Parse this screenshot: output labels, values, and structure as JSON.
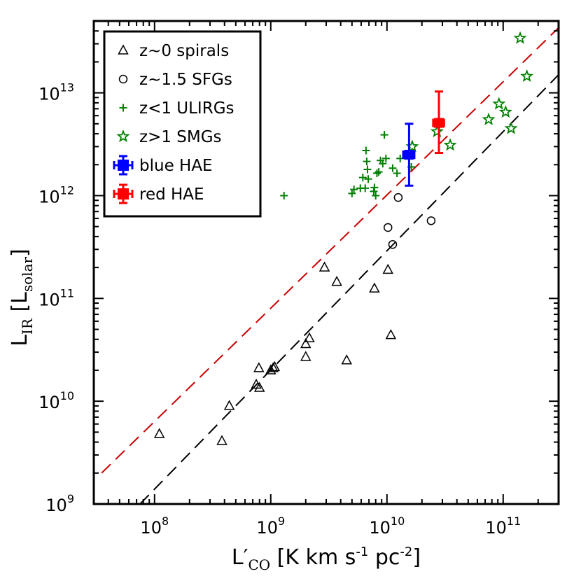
{
  "chart_data": {
    "type": "scatter",
    "xscale": "log",
    "yscale": "log",
    "xlim": [
      30000000,
      300000000000
    ],
    "ylim": [
      1000000000,
      50000000000000
    ],
    "xlabel": {
      "main": "L′",
      "sub": "CO",
      "rest": " [K km s",
      "exp1": "-1",
      "mid": " pc",
      "exp2": "-2",
      "end": "]"
    },
    "ylabel": {
      "main": "L",
      "sub": "IR",
      "open": " [L",
      "sub2": "solar",
      "close": "]"
    },
    "xticks": [
      {
        "value": 100000000,
        "base": "10",
        "exp": "8"
      },
      {
        "value": 1000000000,
        "base": "10",
        "exp": "9"
      },
      {
        "value": 10000000000,
        "base": "10",
        "exp": "10"
      },
      {
        "value": 100000000000,
        "base": "10",
        "exp": "11"
      }
    ],
    "yticks": [
      {
        "value": 1000000000,
        "base": "10",
        "exp": "9"
      },
      {
        "value": 10000000000,
        "base": "10",
        "exp": "10"
      },
      {
        "value": 100000000000,
        "base": "10",
        "exp": "11"
      },
      {
        "value": 1000000000000,
        "base": "10",
        "exp": "12"
      },
      {
        "value": 10000000000000,
        "base": "10",
        "exp": "13"
      }
    ],
    "series": [
      {
        "name": "z~0 spirals",
        "marker": "triangle",
        "color": "#000000",
        "points": [
          [
            110000000,
            4800000000
          ],
          [
            380000000,
            4100000000
          ],
          [
            440000000,
            9000000000
          ],
          [
            750000000,
            14500000000
          ],
          [
            800000000,
            13500000000
          ],
          [
            790000000,
            21000000000
          ],
          [
            1000000000,
            20000000000
          ],
          [
            1050000000,
            21000000000
          ],
          [
            1080000000,
            21500000000
          ],
          [
            2000000000,
            27000000000
          ],
          [
            2000000000,
            36000000000
          ],
          [
            2150000000,
            41000000000
          ],
          [
            2900000000,
            200000000000
          ],
          [
            3700000000,
            145000000000
          ],
          [
            4500000000,
            25000000000
          ],
          [
            7800000000,
            125000000000
          ],
          [
            10200000000,
            190000000000
          ],
          [
            10800000000,
            44000000000
          ]
        ]
      },
      {
        "name": "z~1.5 SFGs",
        "marker": "circle",
        "color": "#000000",
        "points": [
          [
            10200000000,
            490000000000
          ],
          [
            11200000000,
            335000000000
          ],
          [
            12500000000,
            960000000000
          ],
          [
            24000000000,
            570000000000
          ]
        ]
      },
      {
        "name": "z<1 ULIRGs",
        "marker": "plus",
        "color": "#008000",
        "points": [
          [
            1300000000,
            1000000000000
          ],
          [
            5000000000,
            1050000000000
          ],
          [
            5200000000,
            1150000000000
          ],
          [
            5900000000,
            1180000000000
          ],
          [
            6500000000,
            1180000000000
          ],
          [
            6200000000,
            1500000000000
          ],
          [
            6900000000,
            1450000000000
          ],
          [
            7700000000,
            1100000000000
          ],
          [
            8000000000,
            1000000000000
          ],
          [
            7800000000,
            1200000000000
          ],
          [
            6800000000,
            1800000000000
          ],
          [
            6700000000,
            2150000000000
          ],
          [
            6600000000,
            2750000000000
          ],
          [
            8200000000,
            1650000000000
          ],
          [
            9200000000,
            2050000000000
          ],
          [
            8800000000,
            2200000000000
          ],
          [
            9800000000,
            2300000000000
          ],
          [
            9500000000,
            3900000000000
          ],
          [
            11200000000,
            1850000000000
          ],
          [
            12200000000,
            1650000000000
          ],
          [
            13000000000,
            2300000000000
          ],
          [
            15500000000,
            2600000000000
          ],
          [
            16200000000,
            1900000000000
          ],
          [
            8500000000,
            1700000000000
          ]
        ]
      },
      {
        "name": "z>1 SMGs",
        "marker": "star",
        "color": "#008000",
        "points": [
          [
            16500000000,
            3000000000000
          ],
          [
            27000000000,
            4200000000000
          ],
          [
            35000000000,
            3100000000000
          ],
          [
            75000000000,
            5500000000000
          ],
          [
            92000000000,
            7800000000000
          ],
          [
            105000000000,
            6500000000000
          ],
          [
            117000000000,
            4500000000000
          ],
          [
            140000000000,
            34000000000000
          ],
          [
            160000000000,
            14500000000000
          ]
        ]
      },
      {
        "name": "blue HAE",
        "marker": "square-errorbar",
        "color": "#0000ff",
        "points": [
          [
            15500000000,
            2500000000000
          ]
        ],
        "yerr": [
          [
            1250000000000,
            5000000000000
          ]
        ],
        "xerr": [
          [
            13800000000,
            17200000000
          ]
        ]
      },
      {
        "name": "red HAE",
        "marker": "square-errorbar",
        "color": "#ff0000",
        "points": [
          [
            28000000000,
            5100000000000
          ]
        ],
        "yerr": [
          [
            2600000000000,
            10300000000000
          ]
        ],
        "xerr": [
          [
            25000000000,
            31000000000
          ]
        ]
      }
    ],
    "lines": [
      {
        "name": "black dashed relation",
        "color": "#000000",
        "dash": true,
        "from": [
          75000000,
          1000000000
        ],
        "to": [
          300000000000,
          15000000000000
        ]
      },
      {
        "name": "red dashed relation",
        "color": "#cc0000",
        "dash": true,
        "from": [
          35000000,
          2000000000
        ],
        "to": [
          300000000000,
          43000000000000
        ]
      }
    ],
    "legend": {
      "position": "top-left",
      "entries": [
        {
          "label": "z~0 spirals",
          "marker": "triangle",
          "color": "#000000"
        },
        {
          "label": "z~1.5 SFGs",
          "marker": "circle",
          "color": "#000000"
        },
        {
          "label": "z<1 ULIRGs",
          "marker": "plus",
          "color": "#008000"
        },
        {
          "label": "z>1 SMGs",
          "marker": "star",
          "color": "#008000"
        },
        {
          "label": "blue HAE",
          "marker": "square-errorbar",
          "color": "#0000ff"
        },
        {
          "label": "red HAE",
          "marker": "square-errorbar",
          "color": "#ff0000"
        }
      ]
    }
  }
}
